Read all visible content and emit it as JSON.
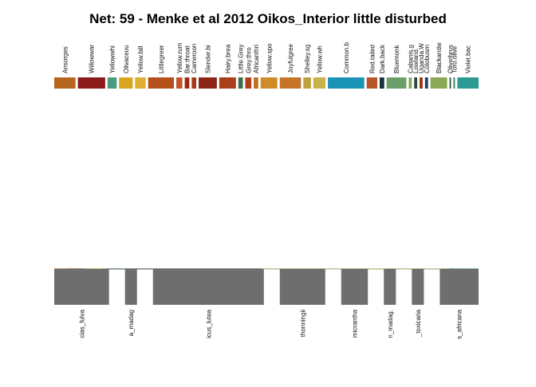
{
  "chart_data": {
    "type": "bipartite",
    "title": "Net: 59 - Menke et al 2012 Oikos_Interior little disturbed",
    "higher_level": [
      {
        "label": "Ansorges",
        "color": "#b5651d"
      },
      {
        "label": "Willowwar",
        "color": "#8b1a1a"
      },
      {
        "label": "Yellowwhi",
        "color": "#4a9b7f"
      },
      {
        "label": "Olivaceou",
        "color": "#d9a520"
      },
      {
        "label": "Yellow.bill",
        "color": "#e0ae30"
      },
      {
        "label": "Littlegreer",
        "color": "#b5501a"
      },
      {
        "label": "Yellow.rum",
        "color": "#c0562a"
      },
      {
        "label": "Bar.throat",
        "color": "#9a2a10"
      },
      {
        "label": "Cameroon",
        "color": "#a33a1e"
      },
      {
        "label": "Slender.bi",
        "color": "#8b2515"
      },
      {
        "label": "Hairy.brea",
        "color": "#a83e1a"
      },
      {
        "label": "Little.Grey",
        "color": "#3b6e4a"
      },
      {
        "label": "Grey.thro",
        "color": "#b0401c"
      },
      {
        "label": "Africanthri",
        "color": "#c0701e"
      },
      {
        "label": "Yellow.spo",
        "color": "#cf8a2a"
      },
      {
        "label": "Joyfulgree",
        "color": "#c6742a"
      },
      {
        "label": "Shelley.sg",
        "color": "#bfa040"
      },
      {
        "label": "Yellow.wh",
        "color": "#c9b24a"
      },
      {
        "label": "Common.b",
        "color": "#1a93b5"
      },
      {
        "label": "Red.tailed",
        "color": "#b8562a"
      },
      {
        "label": "Dark.back",
        "color": "#1e2d3d"
      },
      {
        "label": "Bluemonk",
        "color": "#6b9e68"
      },
      {
        "label": "Cabanis.g",
        "color": "#8ba85a"
      },
      {
        "label": "Lowland.",
        "color": "#2c4a3a"
      },
      {
        "label": "Uganda.W",
        "color": "#a03010"
      },
      {
        "label": "Colobusm",
        "color": "#1f3f5f"
      },
      {
        "label": "Blackandw",
        "color": "#8ba855"
      },
      {
        "label": "Olivethrus",
        "color": "#2f5a3a"
      },
      {
        "label": "Toro.olive",
        "color": "#3a7d5a"
      },
      {
        "label": "Violet.bac",
        "color": "#2b9a92"
      }
    ],
    "lower_level": [
      {
        "label": "cias_fulva"
      },
      {
        "label": "a_madag"
      },
      {
        "label": "icus_lutea"
      },
      {
        "label": "thonningii"
      },
      {
        "label": "micrantha"
      },
      {
        "label": "n_madag."
      },
      {
        "label": "_toxicaria"
      },
      {
        "label": "s_africana"
      }
    ],
    "links": [
      {
        "from": 0,
        "to": 0,
        "weight": 10
      },
      {
        "from": 0,
        "to": 2,
        "weight": 4
      },
      {
        "from": 1,
        "to": 0,
        "weight": 12
      },
      {
        "from": 1,
        "to": 2,
        "weight": 6
      },
      {
        "from": 2,
        "to": 0,
        "weight": 4
      },
      {
        "from": 2,
        "to": 2,
        "weight": 2
      },
      {
        "from": 3,
        "to": 0,
        "weight": 6
      },
      {
        "from": 3,
        "to": 2,
        "weight": 3
      },
      {
        "from": 4,
        "to": 0,
        "weight": 4
      },
      {
        "from": 4,
        "to": 2,
        "weight": 3
      },
      {
        "from": 5,
        "to": 1,
        "weight": 5
      },
      {
        "from": 5,
        "to": 2,
        "weight": 12
      },
      {
        "from": 6,
        "to": 0,
        "weight": 2
      },
      {
        "from": 6,
        "to": 2,
        "weight": 2
      },
      {
        "from": 7,
        "to": 2,
        "weight": 3
      },
      {
        "from": 8,
        "to": 2,
        "weight": 2
      },
      {
        "from": 8,
        "to": 4,
        "weight": 1
      },
      {
        "from": 9,
        "to": 2,
        "weight": 8
      },
      {
        "from": 9,
        "to": 3,
        "weight": 4
      },
      {
        "from": 10,
        "to": 2,
        "weight": 8
      },
      {
        "from": 10,
        "to": 3,
        "weight": 3
      },
      {
        "from": 11,
        "to": 2,
        "weight": 2
      },
      {
        "from": 11,
        "to": 6,
        "weight": 1
      },
      {
        "from": 12,
        "to": 2,
        "weight": 3
      },
      {
        "from": 12,
        "to": 4,
        "weight": 1
      },
      {
        "from": 13,
        "to": 2,
        "weight": 2
      },
      {
        "from": 13,
        "to": 7,
        "weight": 1
      },
      {
        "from": 14,
        "to": 2,
        "weight": 4
      },
      {
        "from": 14,
        "to": 3,
        "weight": 6
      },
      {
        "from": 14,
        "to": 7,
        "weight": 1
      },
      {
        "from": 15,
        "to": 2,
        "weight": 6
      },
      {
        "from": 15,
        "to": 3,
        "weight": 8
      },
      {
        "from": 16,
        "to": 3,
        "weight": 4
      },
      {
        "from": 16,
        "to": 0,
        "weight": 1
      },
      {
        "from": 17,
        "to": 3,
        "weight": 6
      },
      {
        "from": 17,
        "to": 4,
        "weight": 2
      },
      {
        "from": 18,
        "to": 4,
        "weight": 16
      },
      {
        "from": 18,
        "to": 1,
        "weight": 2
      },
      {
        "from": 18,
        "to": 2,
        "weight": 2
      },
      {
        "from": 18,
        "to": 6,
        "weight": 2
      },
      {
        "from": 18,
        "to": 7,
        "weight": 2
      },
      {
        "from": 19,
        "to": 2,
        "weight": 5
      },
      {
        "from": 19,
        "to": 5,
        "weight": 2
      },
      {
        "from": 20,
        "to": 2,
        "weight": 1
      },
      {
        "from": 20,
        "to": 7,
        "weight": 1
      },
      {
        "from": 20,
        "to": 0,
        "weight": 1
      },
      {
        "from": 21,
        "to": 5,
        "weight": 6
      },
      {
        "from": 21,
        "to": 6,
        "weight": 3
      },
      {
        "from": 21,
        "to": 2,
        "weight": 3
      },
      {
        "from": 21,
        "to": 1,
        "weight": 1
      },
      {
        "from": 22,
        "to": 3,
        "weight": 1
      },
      {
        "from": 22,
        "to": 1,
        "weight": 1
      },
      {
        "from": 23,
        "to": 6,
        "weight": 1
      },
      {
        "from": 23,
        "to": 0,
        "weight": 1
      },
      {
        "from": 24,
        "to": 5,
        "weight": 1
      },
      {
        "from": 24,
        "to": 6,
        "weight": 1
      },
      {
        "from": 25,
        "to": 6,
        "weight": 1
      },
      {
        "from": 25,
        "to": 3,
        "weight": 1
      },
      {
        "from": 26,
        "to": 7,
        "weight": 8
      },
      {
        "from": 26,
        "to": 2,
        "weight": 2
      },
      {
        "from": 26,
        "to": 3,
        "weight": 1
      },
      {
        "from": 27,
        "to": 7,
        "weight": 1
      },
      {
        "from": 28,
        "to": 7,
        "weight": 1
      },
      {
        "from": 29,
        "to": 7,
        "weight": 14
      }
    ],
    "lower_color": "#6e6e6e",
    "legend": "none"
  }
}
